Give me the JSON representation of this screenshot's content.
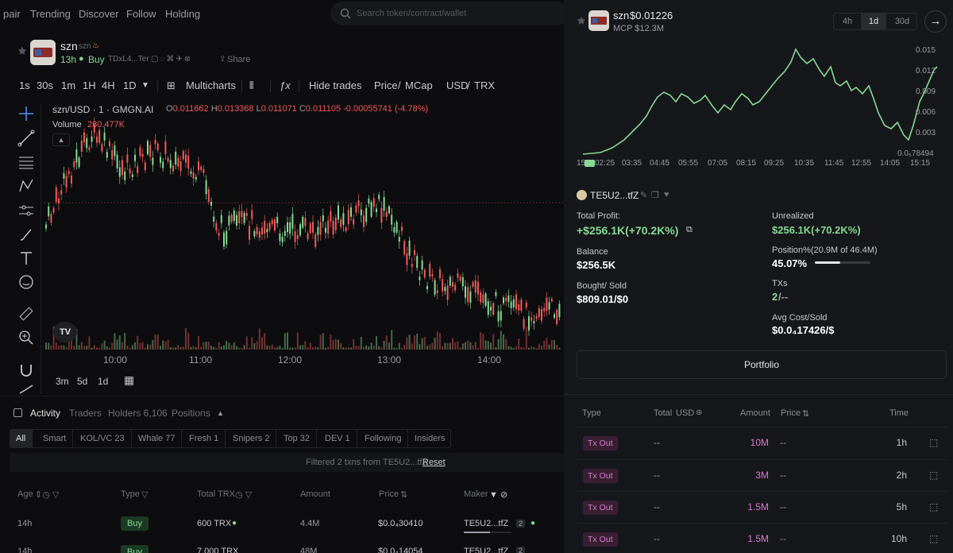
{
  "nav": {
    "items": [
      "pair",
      "Trending",
      "Discover",
      "Follow",
      "Holding"
    ],
    "search_placeholder": "Search token/contract/wallet"
  },
  "token": {
    "name": "szn",
    "sub": "szn",
    "age": "13h",
    "buy_label": "Buy",
    "contract": "TDxL4...Ter",
    "share_label": "Share"
  },
  "toolbar": {
    "intervals": [
      "1s",
      "30s",
      "1m",
      "1H",
      "4H",
      "1D"
    ],
    "multicharts": "Multicharts",
    "hide_trades": "Hide trades",
    "price": "Price",
    "mcap": "MCap",
    "usd": "USD",
    "trx": "TRX",
    "slash": "/"
  },
  "chart": {
    "pair_label": "szn/USD · 1 · GMGN.AI",
    "o_label": "O",
    "o_value": "0.011662",
    "h_label": "H",
    "h_value": "0.013368",
    "l_label": "L",
    "l_value": "0.011071",
    "c_label": "C",
    "c_value": "0.011105",
    "change": "-0.00055741 (-4.78%)",
    "volume_label": "Volume",
    "volume_value": "280.477K",
    "x_ticks": [
      "10:00",
      "11:00",
      "12:00",
      "13:00",
      "14:00"
    ],
    "ranges": [
      "3m",
      "5d",
      "1d"
    ]
  },
  "activity": {
    "tabs": [
      "Activity",
      "Traders",
      "Holders 6,106",
      "Positions"
    ],
    "filters": [
      "All",
      "Smart",
      "KOL/VC 23",
      "Whale 77",
      "Fresh 1",
      "Snipers 2",
      "Top 32",
      "DEV 1",
      "Following",
      "Insiders"
    ],
    "filter_note": "Filtered 2 txns from TE5U2...tfZ",
    "reset": "Reset",
    "headers": [
      "Age",
      "Type",
      "Total TRX",
      "Amount",
      "Price",
      "Maker"
    ],
    "rows": [
      {
        "age": "14h",
        "type": "Buy",
        "total": "600 TRX",
        "amount": "4.4M",
        "price": "$0.0₄30410",
        "maker": "TE5U2...tfZ",
        "badge": "2"
      },
      {
        "age": "14h",
        "type": "Buy",
        "total": "7,000 TRX",
        "amount": "48M",
        "price": "$0.0₄14054",
        "maker": "TE5U2...tfZ",
        "badge": "2"
      }
    ]
  },
  "panel": {
    "token": "szn",
    "price": "$0.01226",
    "mcp": "MCP $12.3M",
    "timeframes": [
      "4h",
      "1d",
      "30d"
    ],
    "y_ticks": [
      "0.015",
      "0.012",
      "0.009",
      "0.006",
      "0.003",
      "0.0₅78494"
    ],
    "x_ticks": [
      "15:",
      "02:25",
      "03:35",
      "04:45",
      "05:55",
      "07:05",
      "08:15",
      "09:25",
      "10:35",
      "11:45",
      "12:55",
      "14:05",
      "15:15"
    ],
    "wallet": "TE5U2...tfZ",
    "total_profit_label": "Total Profit:",
    "total_profit": "+$256.1K(+70.2K%)",
    "unrealized_label": "Unrealized",
    "unrealized": "$256.1K(+70.2K%)",
    "balance_label": "Balance",
    "balance": "$256.5K",
    "position_label": "Position%(20.9M of 46.4M)",
    "position": "45.07%",
    "position_fraction": 0.4507,
    "bought_label": "Bought/ Sold",
    "bought": "$809.01/$0",
    "txs_label": "TXs",
    "txs_buy": "2",
    "txs_rest": "/--",
    "avgcost_label": "Avg Cost/Sold",
    "avgcost": "$0.0₄17426/$",
    "portfolio_btn": "Portfolio",
    "table_headers": {
      "type": "Type",
      "total": "Total",
      "usd": "USD",
      "amount": "Amount",
      "price": "Price",
      "time": "Time"
    },
    "tx_rows": [
      {
        "type": "Tx Out",
        "total": "--",
        "amount": "10M",
        "price": "--",
        "time": "1h"
      },
      {
        "type": "Tx Out",
        "total": "--",
        "amount": "3M",
        "price": "--",
        "time": "2h"
      },
      {
        "type": "Tx Out",
        "total": "--",
        "amount": "1.5M",
        "price": "--",
        "time": "5h"
      },
      {
        "type": "Tx Out",
        "total": "--",
        "amount": "1.5M",
        "price": "--",
        "time": "10h"
      }
    ]
  },
  "colors": {
    "up": "#86d993",
    "down": "#f05a5a",
    "accent": "#5b8cff",
    "tx_out": "#d77ad0"
  }
}
